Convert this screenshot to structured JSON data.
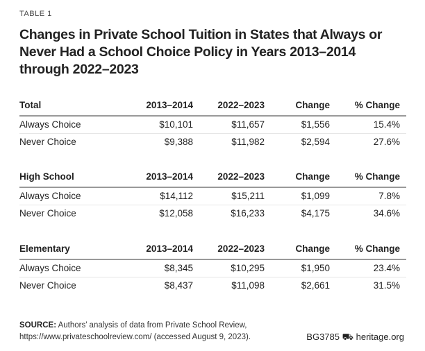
{
  "label": "TABLE 1",
  "title": "Changes in Private School Tuition in States that Always or Never Had a School Choice Policy in Years 2013–2014 through 2022–2023",
  "sections": [
    {
      "header": [
        "Total",
        "2013–2014",
        "2022–2023",
        "Change",
        "% Change"
      ],
      "rows": [
        [
          "Always Choice",
          "$10,101",
          "$11,657",
          "$1,556",
          "15.4%"
        ],
        [
          "Never Choice",
          "$9,388",
          "$11,982",
          "$2,594",
          "27.6%"
        ]
      ]
    },
    {
      "header": [
        "High School",
        "2013–2014",
        "2022–2023",
        "Change",
        "% Change"
      ],
      "rows": [
        [
          "Always Choice",
          "$14,112",
          "$15,211",
          "$1,099",
          "7.8%"
        ],
        [
          "Never Choice",
          "$12,058",
          "$16,233",
          "$4,175",
          "34.6%"
        ]
      ]
    },
    {
      "header": [
        "Elementary",
        "2013–2014",
        "2022–2023",
        "Change",
        "% Change"
      ],
      "rows": [
        [
          "Always Choice",
          "$8,345",
          "$10,295",
          "$1,950",
          "23.4%"
        ],
        [
          "Never Choice",
          "$8,437",
          "$11,098",
          "$2,661",
          "31.5%"
        ]
      ]
    }
  ],
  "source": {
    "label": "SOURCE:",
    "text": "Authors’ analysis of data from Private School Review, https://www.privateschoolreview.com/ (accessed August 9, 2023)."
  },
  "credit": {
    "code": "BG3785",
    "icon": "liberty-bell-icon",
    "site": "heritage.org"
  }
}
